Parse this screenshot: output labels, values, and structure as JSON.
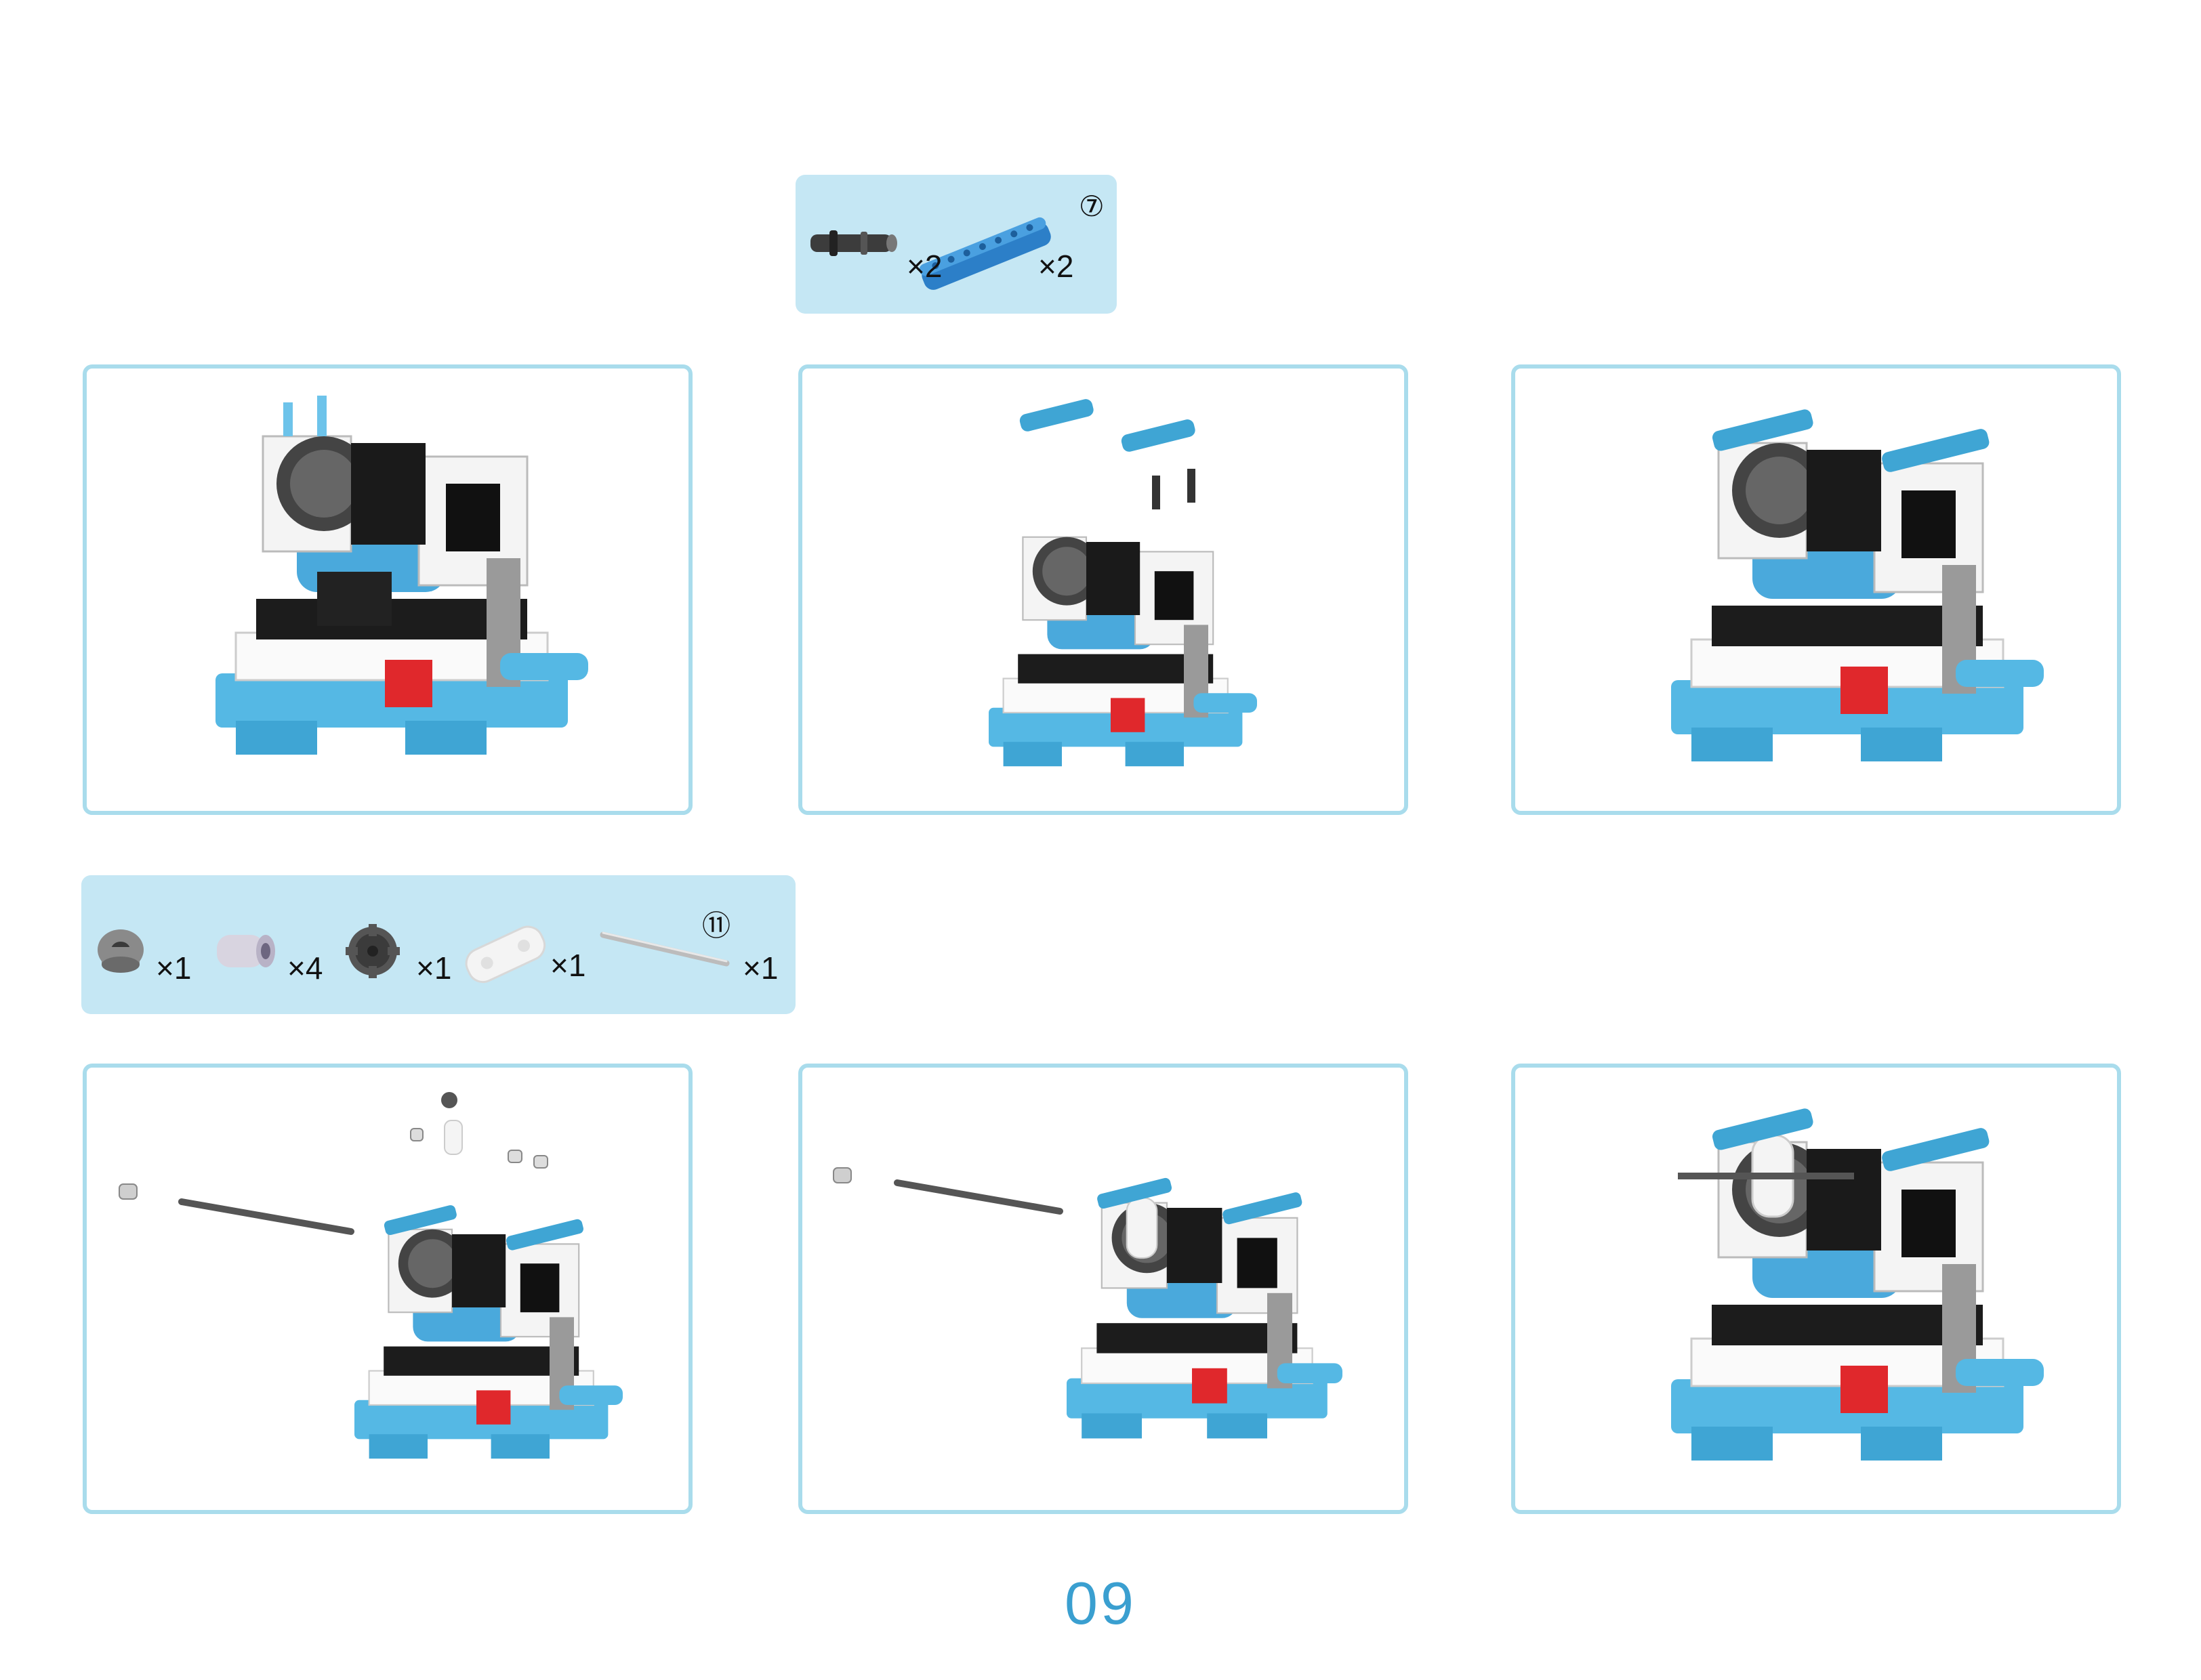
{
  "top_parts": {
    "items": [
      {
        "name": "axle-pin-icon",
        "qty": "×2"
      },
      {
        "name": "beam-7-icon",
        "qty": "×2",
        "size_mark": "⑦"
      }
    ]
  },
  "bottom_parts": {
    "items": [
      {
        "name": "bushing-dark-icon",
        "qty": "×1"
      },
      {
        "name": "bushing-light-icon",
        "qty": "×4"
      },
      {
        "name": "gear-small-icon",
        "qty": "×1"
      },
      {
        "name": "connector-white-icon",
        "qty": "×1"
      },
      {
        "name": "axle-11-icon",
        "qty": "×1",
        "size_mark": "⑪"
      }
    ]
  },
  "page": {
    "number": "09"
  },
  "colors": {
    "accent_blue": "#3a9fd0",
    "part_blue": "#55b8e4",
    "panel_border": "#a9dcec",
    "parts_bg": "#c5e7f4",
    "red": "#e0282c"
  }
}
